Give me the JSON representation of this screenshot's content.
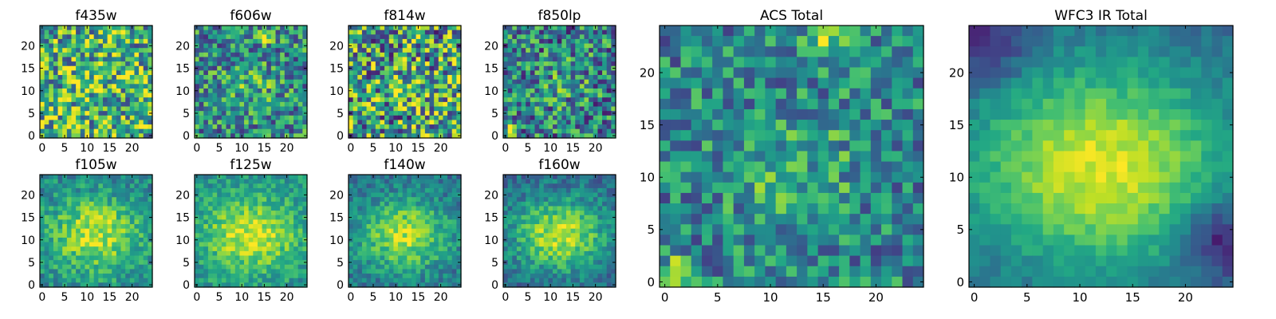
{
  "chart_data": [
    {
      "type": "heatmap",
      "title": "f435w",
      "colormap": "viridis",
      "xlim": [
        0,
        24
      ],
      "ylim": [
        0,
        24
      ],
      "xticks": [
        0,
        5,
        10,
        15,
        20
      ],
      "yticks": [
        0,
        5,
        10,
        15,
        20
      ],
      "image_size": [
        25,
        25
      ],
      "map": {
        "seed": 11,
        "noise": 0.42,
        "bias": 0.62,
        "blob": [
          11,
          11,
          3.5,
          0.1
        ],
        "hot": [
          15,
          22,
          0.38
        ]
      }
    },
    {
      "type": "heatmap",
      "title": "f606w",
      "colormap": "viridis",
      "xlim": [
        0,
        24
      ],
      "ylim": [
        0,
        24
      ],
      "xticks": [
        0,
        5,
        10,
        15,
        20
      ],
      "yticks": [
        0,
        5,
        10,
        15,
        20
      ],
      "image_size": [
        25,
        25
      ],
      "map": {
        "seed": 22,
        "noise": 0.34,
        "bias": 0.48,
        "blob": [
          12,
          11,
          3.5,
          0.14
        ],
        "hot": [
          15,
          22,
          0.45
        ]
      }
    },
    {
      "type": "heatmap",
      "title": "f814w",
      "colormap": "viridis",
      "xlim": [
        0,
        24
      ],
      "ylim": [
        0,
        24
      ],
      "xticks": [
        0,
        5,
        10,
        15,
        20
      ],
      "yticks": [
        0,
        5,
        10,
        15,
        20
      ],
      "image_size": [
        25,
        25
      ],
      "map": {
        "seed": 33,
        "noise": 0.5,
        "bias": 0.55,
        "blob": [
          12,
          11,
          3.5,
          0.14
        ],
        "hot": [
          15,
          22,
          0.35
        ]
      }
    },
    {
      "type": "heatmap",
      "title": "f850lp",
      "colormap": "viridis",
      "xlim": [
        0,
        24
      ],
      "ylim": [
        0,
        24
      ],
      "xticks": [
        0,
        5,
        10,
        15,
        20
      ],
      "yticks": [
        0,
        5,
        10,
        15,
        20
      ],
      "image_size": [
        25,
        25
      ],
      "map": {
        "seed": 44,
        "noise": 0.38,
        "bias": 0.44,
        "blob": [
          12,
          11,
          3.5,
          0.12
        ],
        "hot": [
          1,
          1,
          0.5
        ]
      }
    },
    {
      "type": "heatmap",
      "title": "f105w",
      "colormap": "viridis",
      "xlim": [
        0,
        24
      ],
      "ylim": [
        0,
        24
      ],
      "xticks": [
        0,
        5,
        10,
        15,
        20
      ],
      "yticks": [
        0,
        5,
        10,
        15,
        20
      ],
      "image_size": [
        25,
        25
      ],
      "map": {
        "seed": 55,
        "noise": 0.18,
        "bias": 0.45,
        "blob": [
          12,
          11,
          6,
          0.45
        ],
        "hot": null
      }
    },
    {
      "type": "heatmap",
      "title": "f125w",
      "colormap": "viridis",
      "xlim": [
        0,
        24
      ],
      "ylim": [
        0,
        24
      ],
      "xticks": [
        0,
        5,
        10,
        15,
        20
      ],
      "yticks": [
        0,
        5,
        10,
        15,
        20
      ],
      "image_size": [
        25,
        25
      ],
      "map": {
        "seed": 66,
        "noise": 0.16,
        "bias": 0.5,
        "blob": [
          12,
          11,
          6,
          0.42
        ],
        "hot": null
      }
    },
    {
      "type": "heatmap",
      "title": "f140w",
      "colormap": "viridis",
      "xlim": [
        0,
        24
      ],
      "ylim": [
        0,
        24
      ],
      "xticks": [
        0,
        5,
        10,
        15,
        20
      ],
      "yticks": [
        0,
        5,
        10,
        15,
        20
      ],
      "image_size": [
        25,
        25
      ],
      "map": {
        "seed": 77,
        "noise": 0.16,
        "bias": 0.38,
        "blob": [
          12,
          11,
          5.5,
          0.5
        ],
        "hot": null
      }
    },
    {
      "type": "heatmap",
      "title": "f160w",
      "colormap": "viridis",
      "xlim": [
        0,
        24
      ],
      "ylim": [
        0,
        24
      ],
      "xticks": [
        0,
        5,
        10,
        15,
        20
      ],
      "yticks": [
        0,
        5,
        10,
        15,
        20
      ],
      "image_size": [
        25,
        25
      ],
      "map": {
        "seed": 88,
        "noise": 0.16,
        "bias": 0.35,
        "blob": [
          12,
          11,
          5.5,
          0.55
        ],
        "hot": null
      }
    },
    {
      "type": "heatmap",
      "title": "ACS Total",
      "colormap": "viridis",
      "xlim": [
        0,
        24
      ],
      "ylim": [
        0,
        24
      ],
      "xticks": [
        0,
        5,
        10,
        15,
        20
      ],
      "yticks": [
        0,
        5,
        10,
        15,
        20
      ],
      "image_size": [
        25,
        25
      ],
      "map": {
        "seed": 99,
        "noise": 0.28,
        "bias": 0.46,
        "blob": [
          12,
          11,
          3.5,
          0.18
        ],
        "hot": [
          15,
          23,
          0.42
        ],
        "hot2": [
          1,
          1,
          0.55
        ]
      }
    },
    {
      "type": "heatmap",
      "title": "WFC3 IR Total",
      "colormap": "viridis",
      "xlim": [
        0,
        24
      ],
      "ylim": [
        0,
        24
      ],
      "xticks": [
        0,
        5,
        10,
        15,
        20
      ],
      "yticks": [
        0,
        5,
        10,
        15,
        20
      ],
      "image_size": [
        25,
        25
      ],
      "map": {
        "seed": 111,
        "noise": 0.08,
        "bias": 0.32,
        "blob": [
          12,
          11,
          7,
          0.62
        ],
        "hot": null,
        "dark": [
          [
            23,
            4,
            2.5,
            0.35
          ],
          [
            1,
            23,
            3,
            0.25
          ]
        ]
      }
    }
  ]
}
